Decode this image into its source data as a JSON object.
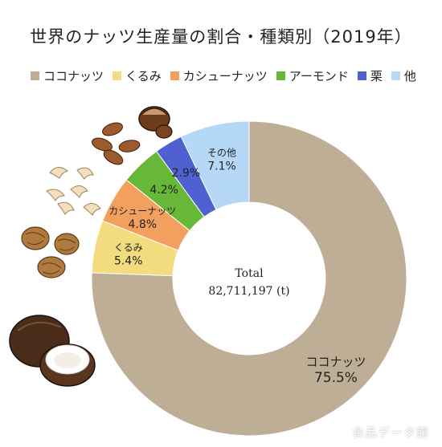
{
  "title": "世界のナッツ生産量の割合・種類別（2019年）",
  "chart_data": {
    "type": "pie",
    "donut": true,
    "center_label": "Total",
    "center_value": "82,711,197 (t)",
    "legend_position": "top",
    "slices": [
      {
        "name": "ココナッツ",
        "value": 75.5,
        "label": "75.5%",
        "color": "#bfae96"
      },
      {
        "name": "くるみ",
        "value": 5.4,
        "label": "5.4%",
        "color": "#f2dc7e"
      },
      {
        "name": "カシューナッツ",
        "value": 4.8,
        "label": "4.8%",
        "color": "#f3a05e"
      },
      {
        "name": "アーモンド",
        "value": 4.2,
        "label": "4.2%",
        "color": "#67b837"
      },
      {
        "name": "栗",
        "value": 2.9,
        "label": "2.9%",
        "color": "#4f61d1"
      },
      {
        "name": "その他",
        "legend_name": "他",
        "value": 7.1,
        "label": "7.1%",
        "color": "#b5d8f7"
      }
    ]
  },
  "watermark": "食品データ館",
  "icons": [
    "coconut-illustration",
    "walnut-illustration",
    "cashew-illustration",
    "almond-illustration",
    "chestnut-illustration"
  ]
}
